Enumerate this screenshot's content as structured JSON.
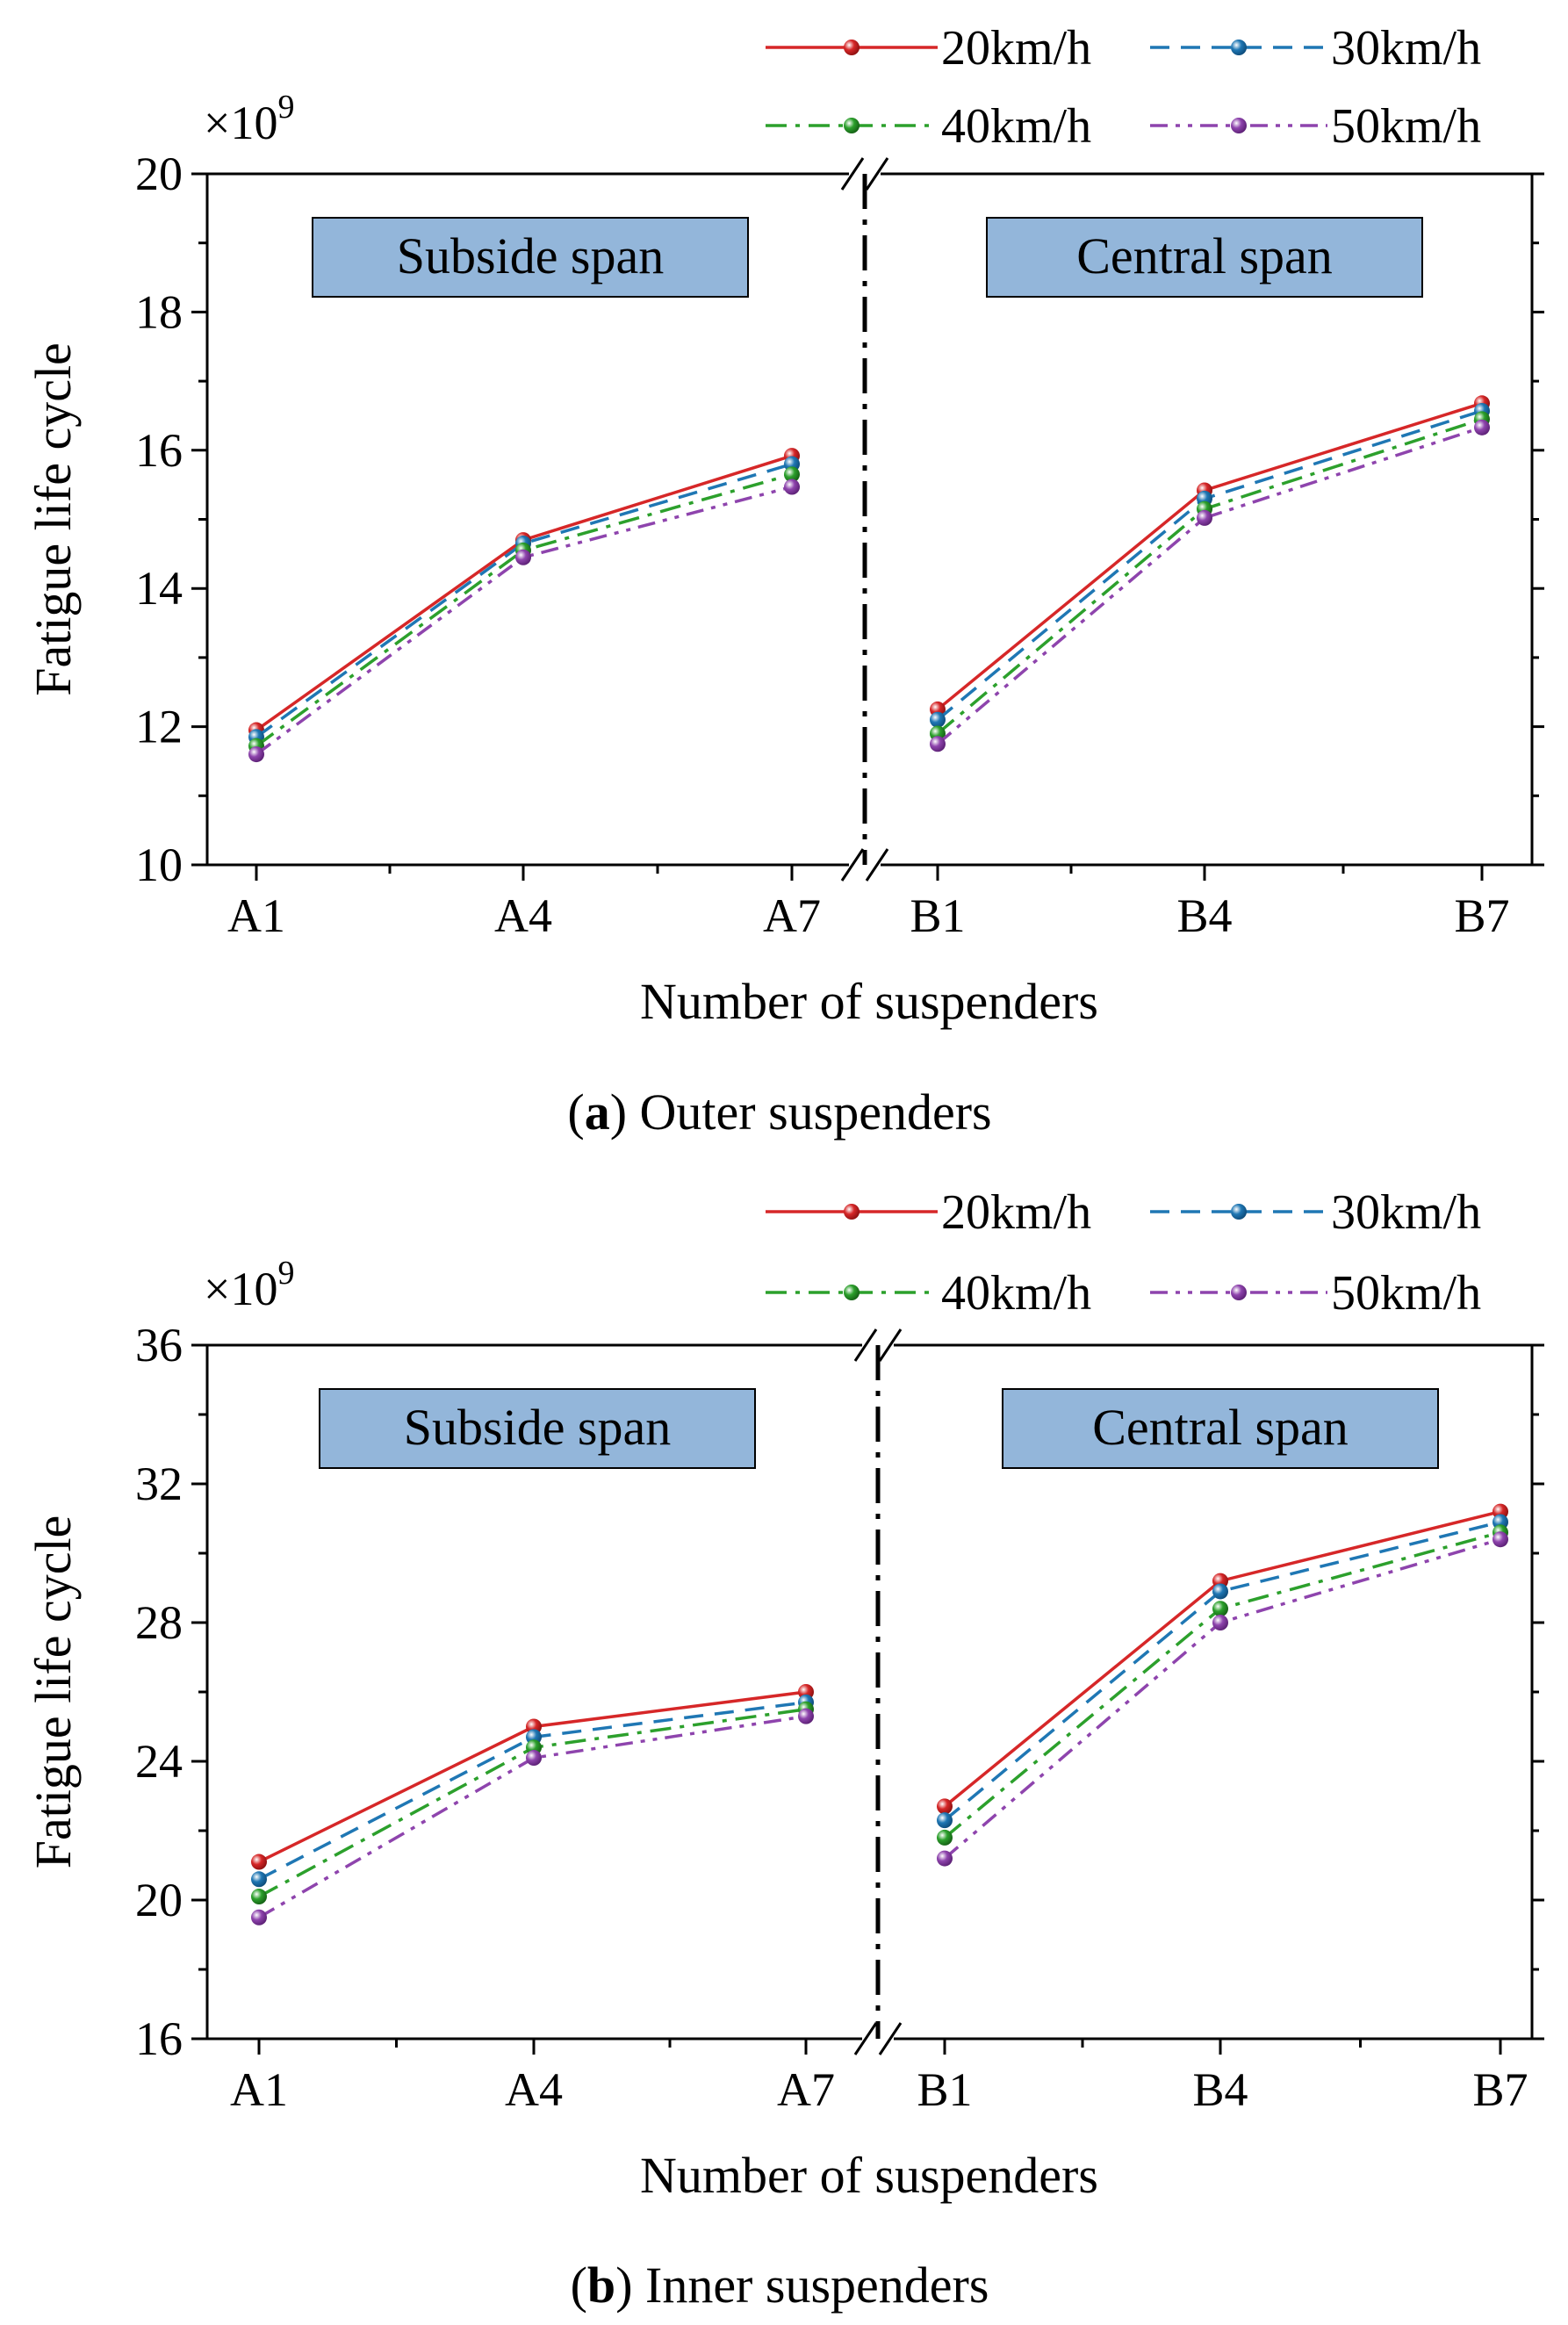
{
  "figure": {
    "panels": [
      {
        "caption_letter": "a",
        "caption_text": ") Outer suspenders",
        "caption_open": "("
      },
      {
        "caption_letter": "b",
        "caption_text": ") Inner suspenders",
        "caption_open": "("
      }
    ]
  },
  "chart_data": [
    {
      "type": "line",
      "title": "(a) Outer suspenders",
      "xlabel": "Number of suspenders",
      "ylabel": "Fatigue life cycle",
      "multiplier_base": "×10",
      "multiplier_exp": "9",
      "ylim": [
        10,
        20
      ],
      "yticks": [
        10,
        12,
        14,
        16,
        18,
        20
      ],
      "broken_x_axis": true,
      "span_labels": [
        "Subside span",
        "Central span"
      ],
      "categories": [
        "A1",
        "A4",
        "A7",
        "B1",
        "B4",
        "B7"
      ],
      "legend": [
        "20km/h",
        "30km/h",
        "40km/h",
        "50km/h"
      ],
      "series": [
        {
          "name": "20km/h",
          "color": "#d62728",
          "dash": "solid",
          "values": [
            11.95,
            14.7,
            15.92,
            12.25,
            15.42,
            16.68
          ]
        },
        {
          "name": "30km/h",
          "color": "#1f77b4",
          "dash": "dashed",
          "values": [
            11.85,
            14.65,
            15.8,
            12.1,
            15.3,
            16.57
          ]
        },
        {
          "name": "40km/h",
          "color": "#2ca02c",
          "dash": "dash-dot",
          "values": [
            11.72,
            14.55,
            15.65,
            11.9,
            15.15,
            16.45
          ]
        },
        {
          "name": "50km/h",
          "color": "#8e44ad",
          "dash": "dash-dot-dot",
          "values": [
            11.6,
            14.45,
            15.47,
            11.75,
            15.02,
            16.33
          ]
        }
      ]
    },
    {
      "type": "line",
      "title": "(b) Inner suspenders",
      "xlabel": "Number of suspenders",
      "ylabel": "Fatigue life cycle",
      "multiplier_base": "×10",
      "multiplier_exp": "9",
      "ylim": [
        16,
        36
      ],
      "yticks": [
        16,
        20,
        24,
        28,
        32,
        36
      ],
      "broken_x_axis": true,
      "span_labels": [
        "Subside span",
        "Central span"
      ],
      "categories": [
        "A1",
        "A4",
        "A7",
        "B1",
        "B4",
        "B7"
      ],
      "legend": [
        "20km/h",
        "30km/h",
        "40km/h",
        "50km/h"
      ],
      "series": [
        {
          "name": "20km/h",
          "color": "#d62728",
          "dash": "solid",
          "values": [
            21.1,
            25.0,
            26.0,
            22.7,
            29.2,
            31.2
          ]
        },
        {
          "name": "30km/h",
          "color": "#1f77b4",
          "dash": "dashed",
          "values": [
            20.6,
            24.7,
            25.7,
            22.3,
            28.9,
            30.9
          ]
        },
        {
          "name": "40km/h",
          "color": "#2ca02c",
          "dash": "dash-dot",
          "values": [
            20.1,
            24.4,
            25.5,
            21.8,
            28.4,
            30.6
          ]
        },
        {
          "name": "50km/h",
          "color": "#8e44ad",
          "dash": "dash-dot-dot",
          "values": [
            19.5,
            24.1,
            25.3,
            21.2,
            28.0,
            30.4
          ]
        }
      ]
    }
  ]
}
